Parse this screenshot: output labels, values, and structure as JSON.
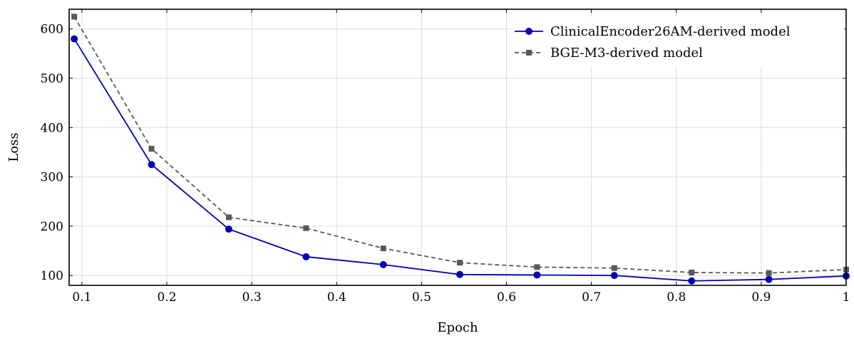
{
  "chart_data": {
    "type": "line",
    "title": "",
    "xlabel": "Epoch",
    "ylabel": "Loss",
    "xlim": [
      0.085,
      1.0
    ],
    "ylim": [
      80,
      640
    ],
    "xticks": [
      0.1,
      0.2,
      0.3,
      0.4,
      0.5,
      0.6,
      0.7,
      0.8,
      0.9,
      1
    ],
    "yticks": [
      100,
      200,
      300,
      400,
      500,
      600
    ],
    "grid": true,
    "legend_position": "top-right",
    "x": [
      0.091,
      0.182,
      0.273,
      0.364,
      0.455,
      0.545,
      0.636,
      0.727,
      0.818,
      0.909,
      1.0
    ],
    "series": [
      {
        "name": "ClinicalEncoder26AM-derived model",
        "color": "#0000b3",
        "marker": "circle",
        "dash": "solid",
        "values": [
          580,
          325,
          194,
          138,
          122,
          102,
          101,
          100,
          89,
          92,
          99
        ]
      },
      {
        "name": "BGE-M3-derived model",
        "color": "#595959",
        "marker": "square",
        "dash": "dashed",
        "values": [
          625,
          357,
          218,
          196,
          155,
          126,
          117,
          115,
          106,
          105,
          112
        ]
      }
    ]
  }
}
